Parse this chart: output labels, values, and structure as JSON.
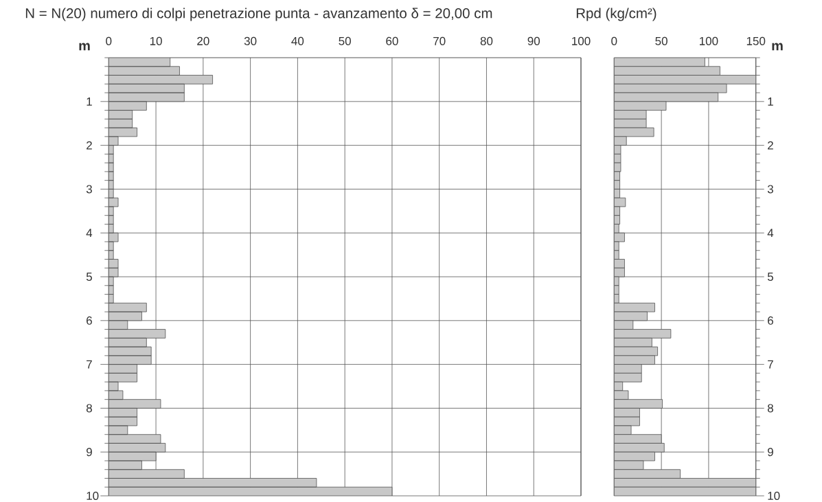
{
  "chart_data": [
    {
      "type": "histogram",
      "title": "N = N(20) numero di colpi penetrazione punta - avanzamento δ = 20,00 cm",
      "ylabel": "m",
      "orientation": "horizontal",
      "color": "#c8c8c8",
      "bins": [
        0,
        0.2,
        0.4,
        0.6,
        0.8,
        1,
        1.2,
        1.4,
        1.6,
        1.8,
        2,
        2.2,
        2.4,
        2.6,
        2.8,
        3,
        3.2,
        3.4,
        3.6,
        3.8,
        4,
        4.2,
        4.4,
        4.6,
        4.8,
        5,
        5.2,
        5.4,
        5.6,
        5.8,
        6,
        6.2,
        6.4,
        6.6,
        6.8,
        7,
        7.2,
        7.4,
        7.6,
        7.8,
        8,
        8.2,
        8.4,
        8.6,
        8.8,
        9,
        9.2,
        9.4,
        9.6,
        9.8,
        10
      ],
      "values": [
        13,
        15,
        22,
        16,
        16,
        8,
        5,
        5,
        6,
        2,
        1,
        1,
        1,
        1,
        1,
        1,
        2,
        1,
        1,
        1,
        2,
        1,
        1,
        2,
        2,
        1,
        1,
        1,
        8,
        7,
        4,
        12,
        8,
        9,
        9,
        6,
        6,
        2,
        3,
        11,
        6,
        6,
        4,
        11,
        12,
        10,
        7,
        16,
        44,
        60
      ],
      "xlim": [
        0,
        100
      ],
      "xticks": [
        0,
        10,
        20,
        30,
        40,
        50,
        60,
        70,
        80,
        90,
        100
      ],
      "ylim": [
        10,
        0
      ],
      "yticks": [
        {
          "value": 0,
          "label": null
        },
        {
          "value": 0.2,
          "label": null
        },
        {
          "value": 0.4,
          "label": null
        },
        {
          "value": 0.6,
          "label": null
        },
        {
          "value": 0.8,
          "label": null
        },
        1,
        {
          "value": 1.2,
          "label": null
        },
        {
          "value": 1.4,
          "label": null
        },
        {
          "value": 1.6,
          "label": null
        },
        {
          "value": 1.8,
          "label": null
        },
        2,
        {
          "value": 2.2,
          "label": null
        },
        {
          "value": 2.4,
          "label": null
        },
        {
          "value": 2.6,
          "label": null
        },
        {
          "value": 2.8,
          "label": null
        },
        3,
        {
          "value": 3.2,
          "label": null
        },
        {
          "value": 3.4,
          "label": null
        },
        {
          "value": 3.6,
          "label": null
        },
        {
          "value": 3.8,
          "label": null
        },
        4,
        {
          "value": 4.2,
          "label": null
        },
        {
          "value": 4.4,
          "label": null
        },
        {
          "value": 4.6,
          "label": null
        },
        {
          "value": 4.8,
          "label": null
        },
        5,
        {
          "value": 5.2,
          "label": null
        },
        {
          "value": 5.4,
          "label": null
        },
        {
          "value": 5.6,
          "label": null
        },
        {
          "value": 5.8,
          "label": null
        },
        6,
        {
          "value": 6.2,
          "label": null
        },
        {
          "value": 6.4,
          "label": null
        },
        {
          "value": 6.6,
          "label": null
        },
        {
          "value": 6.8,
          "label": null
        },
        7,
        {
          "value": 7.2,
          "label": null
        },
        {
          "value": 7.4,
          "label": null
        },
        {
          "value": 7.6,
          "label": null
        },
        {
          "value": 7.8,
          "label": null
        },
        8,
        {
          "value": 8.2,
          "label": null
        },
        {
          "value": 8.4,
          "label": null
        },
        {
          "value": 8.6,
          "label": null
        },
        {
          "value": 8.8,
          "label": null
        },
        9,
        {
          "value": 9.2,
          "label": null
        },
        {
          "value": 9.4,
          "label": null
        },
        {
          "value": 9.6,
          "label": null
        },
        {
          "value": 9.8,
          "label": null
        },
        10
      ],
      "grid": true
    },
    {
      "type": "histogram",
      "title": "Rpd (kg/cm²)",
      "ylabel": "m",
      "orientation": "horizontal",
      "color": "#c8c8c8",
      "bins": [
        0,
        0.2,
        0.4,
        0.6,
        0.8,
        1,
        1.2,
        1.4,
        1.6,
        1.8,
        2,
        2.2,
        2.4,
        2.6,
        2.8,
        3,
        3.2,
        3.4,
        3.6,
        3.8,
        4,
        4.2,
        4.4,
        4.6,
        4.8,
        5,
        5.2,
        5.4,
        5.6,
        5.8,
        6,
        6.2,
        6.4,
        6.6,
        6.8,
        7,
        7.2,
        7.4,
        7.6,
        7.8,
        8,
        8.2,
        8.4,
        8.6,
        8.8,
        9,
        9.2,
        9.4,
        9.6,
        9.8,
        10
      ],
      "values": [
        96,
        112,
        150,
        119,
        110,
        55,
        34,
        34,
        42,
        13,
        7,
        7,
        7,
        6,
        6,
        6,
        12,
        6,
        6,
        5,
        11,
        5,
        5,
        11,
        11,
        5,
        5,
        5,
        43,
        35,
        20,
        60,
        40,
        46,
        43,
        29,
        29,
        9,
        15,
        51,
        27,
        27,
        18,
        50,
        53,
        43,
        31,
        70,
        150,
        150
      ],
      "xlim": [
        0,
        150
      ],
      "xticks": [
        0,
        50,
        100,
        150
      ],
      "ylim": [
        10,
        0
      ],
      "yticks": [
        {
          "value": 0,
          "label": null
        },
        {
          "value": 0.2,
          "label": null
        },
        {
          "value": 0.4,
          "label": null
        },
        {
          "value": 0.6,
          "label": null
        },
        {
          "value": 0.8,
          "label": null
        },
        1,
        {
          "value": 1.2,
          "label": null
        },
        {
          "value": 1.4,
          "label": null
        },
        {
          "value": 1.6,
          "label": null
        },
        {
          "value": 1.8,
          "label": null
        },
        2,
        {
          "value": 2.2,
          "label": null
        },
        {
          "value": 2.4,
          "label": null
        },
        {
          "value": 2.6,
          "label": null
        },
        {
          "value": 2.8,
          "label": null
        },
        3,
        {
          "value": 3.2,
          "label": null
        },
        {
          "value": 3.4,
          "label": null
        },
        {
          "value": 3.6,
          "label": null
        },
        {
          "value": 3.8,
          "label": null
        },
        4,
        {
          "value": 4.2,
          "label": null
        },
        {
          "value": 4.4,
          "label": null
        },
        {
          "value": 4.6,
          "label": null
        },
        {
          "value": 4.8,
          "label": null
        },
        5,
        {
          "value": 5.2,
          "label": null
        },
        {
          "value": 5.4,
          "label": null
        },
        {
          "value": 5.6,
          "label": null
        },
        {
          "value": 5.8,
          "label": null
        },
        6,
        {
          "value": 6.2,
          "label": null
        },
        {
          "value": 6.4,
          "label": null
        },
        {
          "value": 6.6,
          "label": null
        },
        {
          "value": 6.8,
          "label": null
        },
        7,
        {
          "value": 7.2,
          "label": null
        },
        {
          "value": 7.4,
          "label": null
        },
        {
          "value": 7.6,
          "label": null
        },
        {
          "value": 7.8,
          "label": null
        },
        8,
        {
          "value": 8.2,
          "label": null
        },
        {
          "value": 8.4,
          "label": null
        },
        {
          "value": 8.6,
          "label": null
        },
        {
          "value": 8.8,
          "label": null
        },
        9,
        {
          "value": 9.2,
          "label": null
        },
        {
          "value": 9.4,
          "label": null
        },
        {
          "value": 9.6,
          "label": null
        },
        {
          "value": 9.8,
          "label": null
        },
        10
      ],
      "grid": true
    }
  ]
}
